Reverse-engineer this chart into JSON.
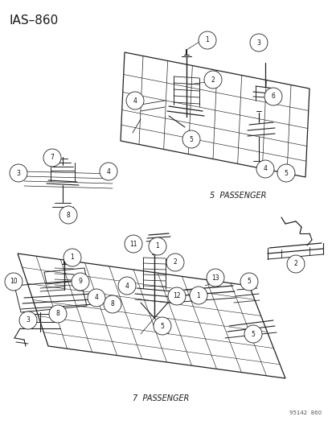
{
  "title": "IAS–860",
  "background_color": "#ffffff",
  "text_color": "#1a1a1a",
  "label_5pass": "5  PASSENGER",
  "label_7pass": "7  PASSENGER",
  "watermark": "95142  860",
  "figsize": [
    4.14,
    5.33
  ],
  "dpi": 100,
  "title_fontsize": 11,
  "label_fontsize": 7,
  "watermark_fontsize": 5,
  "circle_r": 0.013,
  "circle_lw": 0.6,
  "line_lw": 0.7,
  "part_lw": 0.5
}
